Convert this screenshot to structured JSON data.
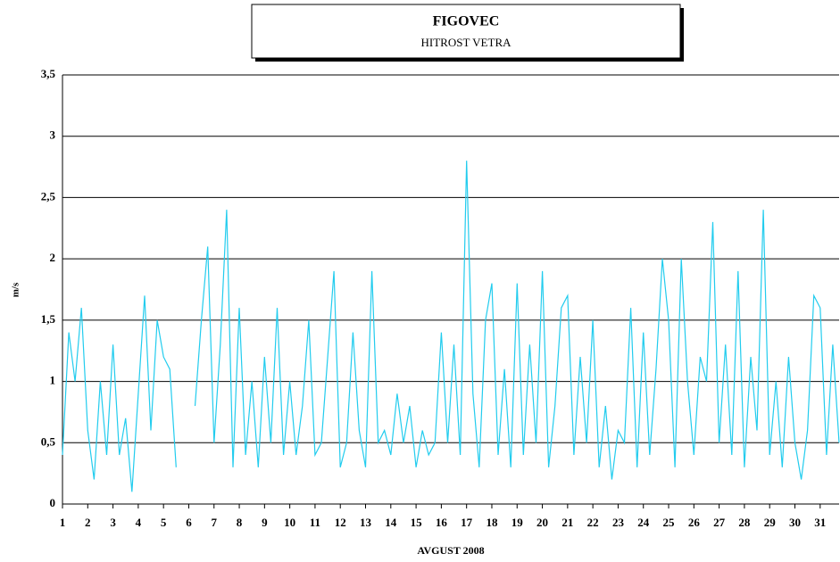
{
  "chart_data": {
    "type": "line",
    "title": "FIGOVEC",
    "subtitle": "HITROST  VETRA",
    "x_label": "AVGUST 2008",
    "y_label": "m/s",
    "color": "#22ccee",
    "grid": true,
    "xlim": [
      1,
      31.75
    ],
    "ylim": [
      0,
      3.5
    ],
    "xticks": [
      1,
      2,
      3,
      4,
      5,
      6,
      7,
      8,
      9,
      10,
      11,
      12,
      13,
      14,
      15,
      16,
      17,
      18,
      19,
      20,
      21,
      22,
      23,
      24,
      25,
      26,
      27,
      28,
      29,
      30,
      31
    ],
    "yticks": [
      0,
      {
        "value": 0.5,
        "label": "0,5"
      },
      1,
      {
        "value": 1.5,
        "label": "1,5"
      },
      2,
      {
        "value": 2.5,
        "label": "2,5"
      },
      3,
      {
        "value": 3.5,
        "label": "3,5"
      }
    ],
    "x": [
      1,
      1.25,
      1.5,
      1.75,
      2,
      2.25,
      2.5,
      2.75,
      3,
      3.25,
      3.5,
      3.75,
      4,
      4.25,
      4.5,
      4.75,
      5,
      5.25,
      5.5,
      5.75,
      6,
      6.25,
      6.5,
      6.75,
      7,
      7.25,
      7.5,
      7.75,
      8,
      8.25,
      8.5,
      8.75,
      9,
      9.25,
      9.5,
      9.75,
      10,
      10.25,
      10.5,
      10.75,
      11,
      11.25,
      11.5,
      11.75,
      12,
      12.25,
      12.5,
      12.75,
      13,
      13.25,
      13.5,
      13.75,
      14,
      14.25,
      14.5,
      14.75,
      15,
      15.25,
      15.5,
      15.75,
      16,
      16.25,
      16.5,
      16.75,
      17,
      17.25,
      17.5,
      17.75,
      18,
      18.25,
      18.5,
      18.75,
      19,
      19.25,
      19.5,
      19.75,
      20,
      20.25,
      20.5,
      20.75,
      21,
      21.25,
      21.5,
      21.75,
      22,
      22.25,
      22.5,
      22.75,
      23,
      23.25,
      23.5,
      23.75,
      24,
      24.25,
      24.5,
      24.75,
      25,
      25.25,
      25.5,
      25.75,
      26,
      26.25,
      26.5,
      26.75,
      27,
      27.25,
      27.5,
      27.75,
      28,
      28.25,
      28.5,
      28.75,
      29,
      29.25,
      29.5,
      29.75,
      30,
      30.25,
      30.5,
      30.75,
      31,
      31.25,
      31.5,
      31.75
    ],
    "values": [
      0.4,
      1.4,
      1.0,
      1.6,
      0.6,
      0.2,
      1.0,
      0.4,
      1.3,
      0.4,
      0.7,
      0.1,
      0.9,
      1.7,
      0.6,
      1.5,
      1.2,
      1.1,
      0.3,
      null,
      null,
      0.8,
      1.5,
      2.1,
      0.5,
      1.3,
      2.4,
      0.3,
      1.6,
      0.4,
      1.0,
      0.3,
      1.2,
      0.5,
      1.6,
      0.4,
      1.0,
      0.4,
      0.8,
      1.5,
      0.4,
      0.5,
      1.2,
      1.9,
      0.3,
      0.5,
      1.4,
      0.6,
      0.3,
      1.9,
      0.5,
      0.6,
      0.4,
      0.9,
      0.5,
      0.8,
      0.3,
      0.6,
      0.4,
      0.5,
      1.4,
      0.5,
      1.3,
      0.4,
      2.8,
      0.9,
      0.3,
      1.5,
      1.8,
      0.4,
      1.1,
      0.3,
      1.8,
      0.4,
      1.3,
      0.5,
      1.9,
      0.3,
      0.8,
      1.6,
      1.7,
      0.4,
      1.2,
      0.5,
      1.5,
      0.3,
      0.8,
      0.2,
      0.6,
      0.5,
      1.6,
      0.3,
      1.4,
      0.4,
      1.1,
      2.0,
      1.5,
      0.3,
      2.0,
      1.0,
      0.4,
      1.2,
      1.0,
      2.3,
      0.5,
      1.3,
      0.4,
      1.9,
      0.3,
      1.2,
      0.6,
      2.4,
      0.4,
      1.0,
      0.3,
      1.2,
      0.5,
      0.2,
      0.6,
      1.7,
      1.6,
      0.4,
      1.3,
      0.5
    ]
  }
}
